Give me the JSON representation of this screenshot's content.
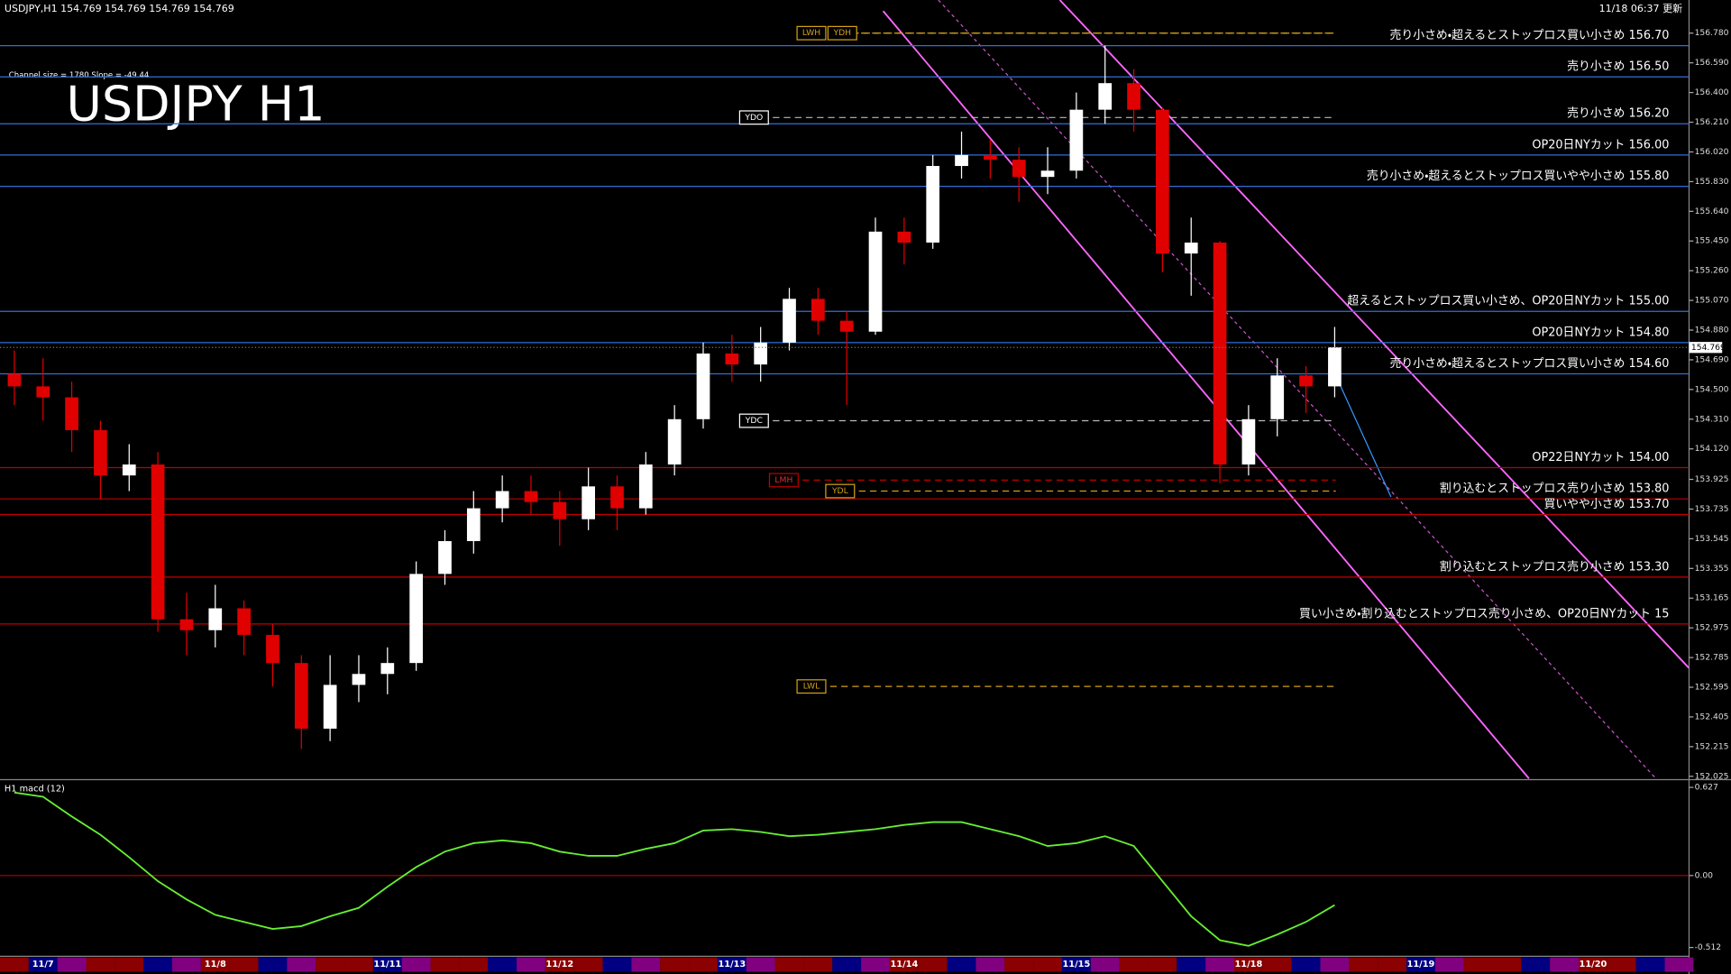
{
  "chart_data": [
    {
      "type": "candlestick",
      "title": "USDJPY H1",
      "subtitle": "USDJPY,H1  154.769 154.769 154.769 154.769",
      "updated": "11/18 06:37 更新",
      "channel_info": "Channel size = 1780 Slope = -49.44",
      "last_price": 154.769,
      "up_color": "#ffffff",
      "down_color": "#e00000",
      "categories": [
        null,
        "11/7",
        null,
        null,
        null,
        null,
        null,
        "11/8",
        null,
        null,
        null,
        null,
        null,
        "11/11",
        null,
        null,
        null,
        null,
        null,
        "11/12",
        null,
        null,
        null,
        null,
        null,
        "11/13",
        null,
        null,
        null,
        null,
        null,
        "11/14",
        null,
        null,
        null,
        null,
        null,
        "11/15",
        null,
        null,
        null,
        null,
        null,
        "11/18",
        null,
        null,
        null,
        null,
        null,
        "11/19",
        null,
        null,
        null,
        null,
        null,
        "11/20",
        null,
        null,
        null
      ],
      "open": [
        154.6,
        154.52,
        154.45,
        154.24,
        153.95,
        154.02,
        153.03,
        152.96,
        153.1,
        152.93,
        152.75,
        152.33,
        152.61,
        152.68,
        152.75,
        153.32,
        153.53,
        153.74,
        153.85,
        153.78,
        153.67,
        153.88,
        153.74,
        154.02,
        154.31,
        154.73,
        154.66,
        154.8,
        155.08,
        154.94,
        154.87,
        155.51,
        155.44,
        155.93,
        156.0,
        155.97,
        155.86,
        155.9,
        156.29,
        156.46,
        156.29,
        155.37,
        155.44,
        154.02,
        154.31,
        154.59,
        154.52,
        null,
        null,
        null,
        null,
        null,
        null,
        null,
        null,
        null,
        null,
        null,
        null
      ],
      "high": [
        154.75,
        154.7,
        154.55,
        154.3,
        154.15,
        154.1,
        153.2,
        153.25,
        153.15,
        153.0,
        152.8,
        152.8,
        152.8,
        152.85,
        153.4,
        153.6,
        153.85,
        153.95,
        153.95,
        153.85,
        154.0,
        153.95,
        154.1,
        154.4,
        154.8,
        154.85,
        154.9,
        155.15,
        155.15,
        155.0,
        155.6,
        155.6,
        156.0,
        156.15,
        156.1,
        156.05,
        156.05,
        156.4,
        156.7,
        156.55,
        156.3,
        155.6,
        155.45,
        154.4,
        154.7,
        154.65,
        154.9,
        null,
        null,
        null,
        null,
        null,
        null,
        null,
        null,
        null,
        null,
        null,
        null
      ],
      "low": [
        154.4,
        154.3,
        154.1,
        153.8,
        153.85,
        152.95,
        152.8,
        152.85,
        152.8,
        152.6,
        152.2,
        152.25,
        152.5,
        152.55,
        152.7,
        153.25,
        153.45,
        153.65,
        153.7,
        153.5,
        153.6,
        153.6,
        153.7,
        153.95,
        154.25,
        154.55,
        154.55,
        154.75,
        154.85,
        154.4,
        154.85,
        155.3,
        155.4,
        155.85,
        155.85,
        155.7,
        155.75,
        155.85,
        156.2,
        156.15,
        155.25,
        155.1,
        153.9,
        153.95,
        154.2,
        154.35,
        154.45,
        null,
        null,
        null,
        null,
        null,
        null,
        null,
        null,
        null,
        null,
        null,
        null
      ],
      "close": [
        154.52,
        154.45,
        154.24,
        153.95,
        154.02,
        153.03,
        152.96,
        153.1,
        152.93,
        152.75,
        152.33,
        152.61,
        152.68,
        152.75,
        153.32,
        153.53,
        153.74,
        153.85,
        153.78,
        153.67,
        153.88,
        153.74,
        154.02,
        154.31,
        154.73,
        154.66,
        154.8,
        155.08,
        154.94,
        154.87,
        155.51,
        155.44,
        155.93,
        156.0,
        155.97,
        155.86,
        155.9,
        156.29,
        156.46,
        156.29,
        155.37,
        155.44,
        154.02,
        154.31,
        154.59,
        154.52,
        154.77,
        null,
        null,
        null,
        null,
        null,
        null,
        null,
        null,
        null,
        null,
        null,
        null
      ],
      "ylim": [
        152.025,
        156.78
      ],
      "yticks": [
        {
          "value": 156.78,
          "label": "156.780"
        },
        {
          "value": 156.59,
          "label": "156.590"
        },
        {
          "value": 156.4,
          "label": "156.400"
        },
        {
          "value": 156.21,
          "label": "156.210"
        },
        {
          "value": 156.02,
          "label": "156.020"
        },
        {
          "value": 155.83,
          "label": "155.830"
        },
        {
          "value": 155.64,
          "label": "155.640"
        },
        {
          "value": 155.45,
          "label": "155.450"
        },
        {
          "value": 155.26,
          "label": "155.260"
        },
        {
          "value": 155.07,
          "label": "155.070"
        },
        {
          "value": 154.88,
          "label": "154.880"
        },
        {
          "value": 154.69,
          "label": "154.690"
        },
        {
          "value": 154.5,
          "label": "154.500"
        },
        {
          "value": 154.31,
          "label": "154.310"
        },
        {
          "value": 154.12,
          "label": "154.120"
        },
        153.925,
        153.735,
        153.545,
        153.355,
        153.165,
        152.975,
        152.785,
        152.595,
        152.405,
        152.215,
        152.025
      ],
      "levels": [
        {
          "label": "売り小さめ・超えるとストップロス買い小さめ 156.70",
          "value": 156.7,
          "color": "#2f6fd8"
        },
        {
          "label": "売り小さめ 156.50",
          "value": 156.5,
          "color": "#2f6fd8"
        },
        {
          "label": "売り小さめ 156.20",
          "value": 156.2,
          "color": "#2f6fd8"
        },
        {
          "label": "OP20日NYカット 156.00",
          "value": 156.0,
          "color": "#2f6fd8"
        },
        {
          "label": "売り小さめ・超えるとストップロス買いやや小さめ 155.80",
          "value": 155.8,
          "color": "#2f6fd8"
        },
        {
          "label": "超えるとストップロス買い小さめ、OP20日NYカット 155.00",
          "value": 155.0,
          "color": "#2f6fd8"
        },
        {
          "label": "OP20日NYカット 154.80",
          "value": 154.8,
          "color": "#2f6fd8"
        },
        {
          "label": "売り小さめ・超えるとストップロス買い小さめ 154.60",
          "value": 154.6,
          "color": "#2f6fd8"
        },
        {
          "label": "OP22日NYカット 154.00",
          "value": 154.0,
          "color": "#c00000"
        },
        {
          "label": "割り込むとストップロス売り小さめ 153.80",
          "value": 153.8,
          "color": "#c00000"
        },
        {
          "label": "買いやや小さめ 153.70",
          "value": 153.7,
          "color": "#c00000"
        },
        {
          "label": "割り込むとストップロス売り小さめ 153.30",
          "value": 153.3,
          "color": "#c00000"
        },
        {
          "label": "買い小さめ・割り込むとストップロス売り小さめ、OP20日NYカット 15",
          "value": 153.0,
          "color": "#c00000"
        }
      ],
      "markers": [
        {
          "label": "LWH",
          "value": 156.78
        },
        {
          "label": "YDH",
          "value": 156.78
        },
        {
          "label": "YDO",
          "value": 156.24
        },
        {
          "label": "YDC",
          "value": 154.3
        },
        {
          "label": "LMH",
          "value": 153.92
        },
        {
          "label": "YDL",
          "value": 153.85
        },
        {
          "label": "LWL",
          "value": 152.6
        }
      ]
    },
    {
      "type": "line",
      "title": "H1  macd (12)",
      "color": "#66ee33",
      "values": [
        0.59,
        0.56,
        0.42,
        0.29,
        0.13,
        -0.04,
        -0.17,
        -0.28,
        -0.33,
        -0.38,
        -0.36,
        -0.29,
        -0.23,
        -0.08,
        0.06,
        0.17,
        0.23,
        0.25,
        0.23,
        0.17,
        0.14,
        0.14,
        0.19,
        0.23,
        0.32,
        0.33,
        0.31,
        0.28,
        0.29,
        0.31,
        0.33,
        0.36,
        0.38,
        0.38,
        0.33,
        0.28,
        0.21,
        0.23,
        0.28,
        0.21,
        -0.04,
        -0.29,
        -0.46,
        -0.5,
        -0.42,
        -0.33,
        -0.21,
        null,
        null,
        null,
        null,
        null,
        null,
        null,
        null,
        null,
        null,
        null,
        null
      ],
      "ylim": [
        -0.512,
        0.627
      ],
      "yticks": [
        0.627,
        {
          "value": 0,
          "label": "0.00"
        },
        -0.512
      ]
    }
  ]
}
